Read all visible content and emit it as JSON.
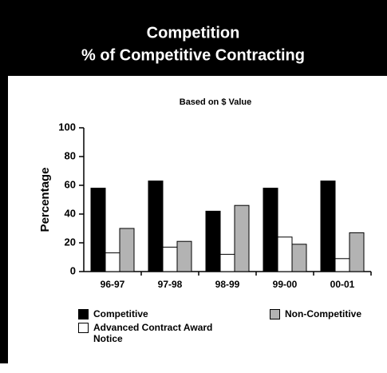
{
  "chart_data": {
    "type": "bar",
    "title": [
      "Competition",
      "% of Competitive Contracting"
    ],
    "subtitle": "Based on $ Value",
    "y_label": "Percentage",
    "categories": [
      "96-97",
      "97-98",
      "98-99",
      "99-00",
      "00-01"
    ],
    "series": [
      {
        "name": "Competitive",
        "color": "#000000",
        "values": [
          58,
          63,
          42,
          58,
          63
        ]
      },
      {
        "name": "Advanced Contract Award Notice",
        "color": "#ffffff",
        "values": [
          13,
          17,
          12,
          24,
          9
        ]
      },
      {
        "name": "Non-Competitive",
        "color": "#b3b3b3",
        "values": [
          30,
          21,
          46,
          19,
          27
        ]
      }
    ],
    "ylim": [
      0,
      100
    ],
    "yticks": [
      0,
      20,
      40,
      60,
      80,
      100
    ],
    "grid": false
  }
}
